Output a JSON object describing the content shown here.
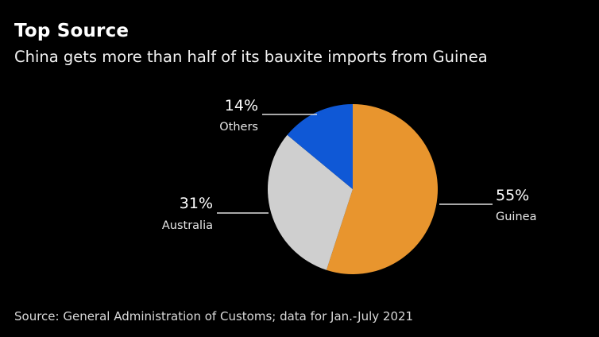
{
  "title": "Top Source",
  "subtitle": "China gets more than half of its bauxite imports from Guinea",
  "source": "Source: General Administration of Customs; data for Jan.-July 2021",
  "chart_data": {
    "type": "pie",
    "title": "Top Source",
    "subtitle": "China gets more than half of its bauxite imports from Guinea",
    "slices": [
      {
        "label": "Guinea",
        "value": 55,
        "value_label": "55%",
        "color": "#E8952E"
      },
      {
        "label": "Australia",
        "value": 31,
        "value_label": "31%",
        "color": "#CFCFCF"
      },
      {
        "label": "Others",
        "value": 14,
        "value_label": "14%",
        "color": "#0F58D6"
      }
    ],
    "start": "12 o'clock",
    "direction": "clockwise",
    "legend": "none"
  }
}
